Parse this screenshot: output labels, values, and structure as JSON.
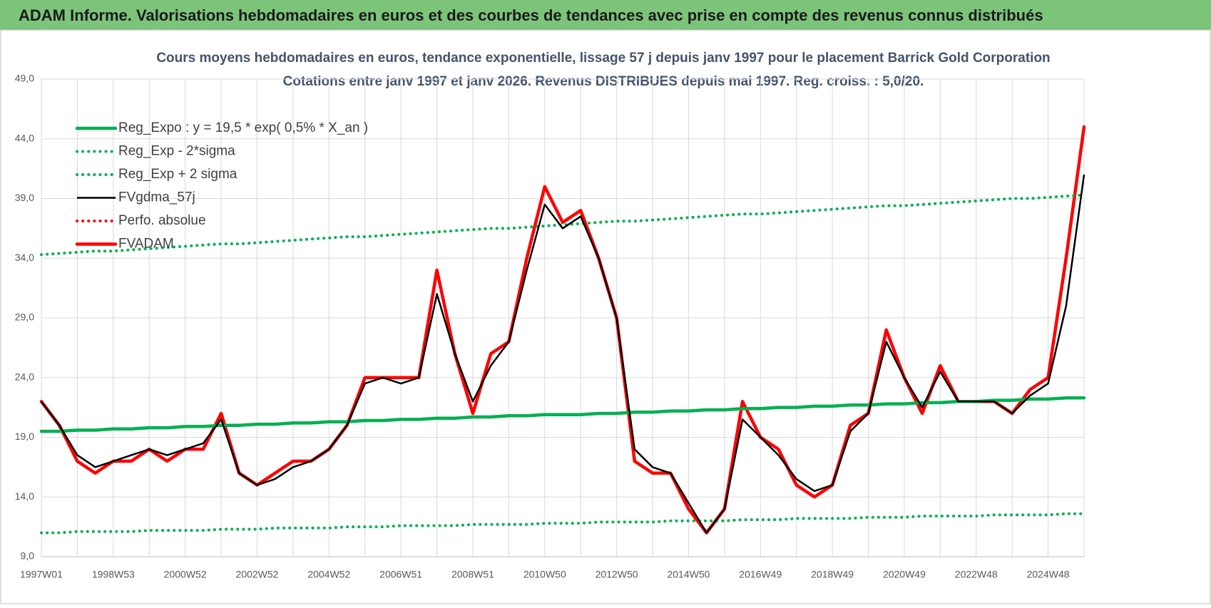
{
  "chart_data": {
    "type": "line",
    "title": "ADAM Informe. Valorisations hebdomadaires en euros et des courbes de tendances avec prise en compte des revenus connus distribués",
    "subtitle": [
      "Cours moyens hebdomadaires en euros, tendance exponentielle, lissage 57 j depuis janv 1997  pour le placement Barrick Gold Corporation",
      "Cotations entre janv 1997 et janv 2026. Revenus DISTRIBUES depuis mai 1997.  Reg. croiss. : 5,0/20."
    ],
    "categories": [
      "1997W01",
      null,
      null,
      null,
      "1998W53",
      null,
      null,
      null,
      "2000W52",
      null,
      null,
      null,
      "2002W52",
      null,
      null,
      null,
      "2004W52",
      null,
      null,
      null,
      "2006W51",
      null,
      null,
      null,
      "2008W51",
      null,
      null,
      null,
      "2010W50",
      null,
      null,
      null,
      "2012W50",
      null,
      null,
      null,
      "2014W50",
      null,
      null,
      null,
      "2016W49",
      null,
      null,
      null,
      "2018W49",
      null,
      null,
      null,
      "2020W49",
      null,
      null,
      null,
      "2022W48",
      null,
      null,
      null,
      "2024W48",
      null,
      null
    ],
    "ylim": [
      9,
      49
    ],
    "yticks": [
      {
        "value": 9,
        "label": "9,0"
      },
      {
        "value": 14,
        "label": "14,0"
      },
      {
        "value": 19,
        "label": "19,0"
      },
      {
        "value": 24,
        "label": "24,0"
      },
      {
        "value": 29,
        "label": "29,0"
      },
      {
        "value": 34,
        "label": "34,0"
      },
      {
        "value": 39,
        "label": "39,0"
      },
      {
        "value": 44,
        "label": "44,0"
      },
      {
        "value": 49,
        "label": "49,0"
      }
    ],
    "grid": true,
    "legend": "upper left",
    "series": [
      {
        "name": "Reg_Expo : y = 19,5 * exp( 0,5% *  X_an )",
        "color": "#00b050",
        "style": "solid",
        "values": [
          19.5,
          19.5,
          19.6,
          19.6,
          19.7,
          19.7,
          19.8,
          19.8,
          19.9,
          19.9,
          20.0,
          20.0,
          20.1,
          20.1,
          20.2,
          20.2,
          20.3,
          20.3,
          20.4,
          20.4,
          20.5,
          20.5,
          20.6,
          20.6,
          20.7,
          20.7,
          20.8,
          20.8,
          20.9,
          20.9,
          20.9,
          21.0,
          21.0,
          21.1,
          21.1,
          21.2,
          21.2,
          21.3,
          21.3,
          21.4,
          21.4,
          21.5,
          21.5,
          21.6,
          21.6,
          21.7,
          21.7,
          21.8,
          21.8,
          21.9,
          21.9,
          22.0,
          22.0,
          22.1,
          22.1,
          22.2,
          22.2,
          22.3,
          22.3
        ]
      },
      {
        "name": "Reg_Exp - 2*sigma",
        "color": "#00b050",
        "style": "dotted",
        "values": [
          11.0,
          11.0,
          11.1,
          11.1,
          11.1,
          11.1,
          11.2,
          11.2,
          11.2,
          11.2,
          11.3,
          11.3,
          11.3,
          11.4,
          11.4,
          11.4,
          11.4,
          11.5,
          11.5,
          11.5,
          11.6,
          11.6,
          11.6,
          11.6,
          11.7,
          11.7,
          11.7,
          11.7,
          11.8,
          11.8,
          11.8,
          11.9,
          11.9,
          11.9,
          11.9,
          12.0,
          12.0,
          12.0,
          12.0,
          12.1,
          12.1,
          12.1,
          12.2,
          12.2,
          12.2,
          12.2,
          12.3,
          12.3,
          12.3,
          12.4,
          12.4,
          12.4,
          12.4,
          12.5,
          12.5,
          12.5,
          12.5,
          12.6,
          12.6
        ]
      },
      {
        "name": "Reg_Exp + 2 sigma",
        "color": "#00b050",
        "style": "dotted",
        "values": [
          34.3,
          34.4,
          34.5,
          34.6,
          34.6,
          34.7,
          34.8,
          34.9,
          35.0,
          35.1,
          35.2,
          35.2,
          35.3,
          35.4,
          35.5,
          35.6,
          35.7,
          35.8,
          35.8,
          35.9,
          36.0,
          36.1,
          36.2,
          36.3,
          36.4,
          36.5,
          36.5,
          36.6,
          36.7,
          36.8,
          36.9,
          37.0,
          37.1,
          37.1,
          37.2,
          37.3,
          37.4,
          37.5,
          37.6,
          37.7,
          37.7,
          37.8,
          37.9,
          38.0,
          38.1,
          38.2,
          38.3,
          38.4,
          38.4,
          38.5,
          38.6,
          38.7,
          38.8,
          38.9,
          39.0,
          39.0,
          39.1,
          39.2,
          39.3
        ]
      },
      {
        "name": "FVgdma_57j",
        "color": "#000000",
        "style": "thin",
        "values": [
          22,
          20,
          17.5,
          16.5,
          17,
          17.5,
          18,
          17.5,
          18,
          18.5,
          20.5,
          16,
          15,
          15.5,
          16.5,
          17,
          18,
          20,
          23.5,
          24,
          23.5,
          24,
          31,
          26,
          22,
          25,
          27,
          33,
          38.5,
          36.5,
          37.5,
          34,
          29,
          18,
          16.5,
          16,
          13.5,
          11,
          13,
          20.5,
          19,
          17.5,
          15.5,
          14.5,
          15,
          19.5,
          21,
          27,
          24,
          21.5,
          24.5,
          22,
          22,
          22,
          21,
          22.5,
          23.5,
          30,
          41
        ]
      },
      {
        "name": "Perfo. absolue",
        "color": "#ff0000",
        "style": "dotted",
        "values": [
          22,
          20,
          17,
          16,
          17,
          17,
          18,
          17,
          18,
          18,
          21,
          16,
          15,
          16,
          17,
          17,
          18,
          20,
          24,
          24,
          24,
          24,
          33,
          26,
          21,
          26,
          27,
          34,
          40,
          37,
          38,
          34,
          29,
          17,
          16,
          16,
          13,
          11,
          13,
          22,
          19,
          18,
          15,
          14,
          15,
          20,
          21,
          28,
          24,
          21,
          25,
          22,
          22,
          22,
          21,
          23,
          24,
          34,
          45
        ]
      },
      {
        "name": "FVADAM",
        "color": "#ff0000",
        "style": "solid",
        "values": [
          22,
          20,
          17,
          16,
          17,
          17,
          18,
          17,
          18,
          18,
          21,
          16,
          15,
          16,
          17,
          17,
          18,
          20,
          24,
          24,
          24,
          24,
          33,
          26,
          21,
          26,
          27,
          34,
          40,
          37,
          38,
          34,
          29,
          17,
          16,
          16,
          13,
          11,
          13,
          22,
          19,
          18,
          15,
          14,
          15,
          20,
          21,
          28,
          24,
          21,
          25,
          22,
          22,
          22,
          21,
          23,
          24,
          34,
          45
        ]
      }
    ]
  }
}
